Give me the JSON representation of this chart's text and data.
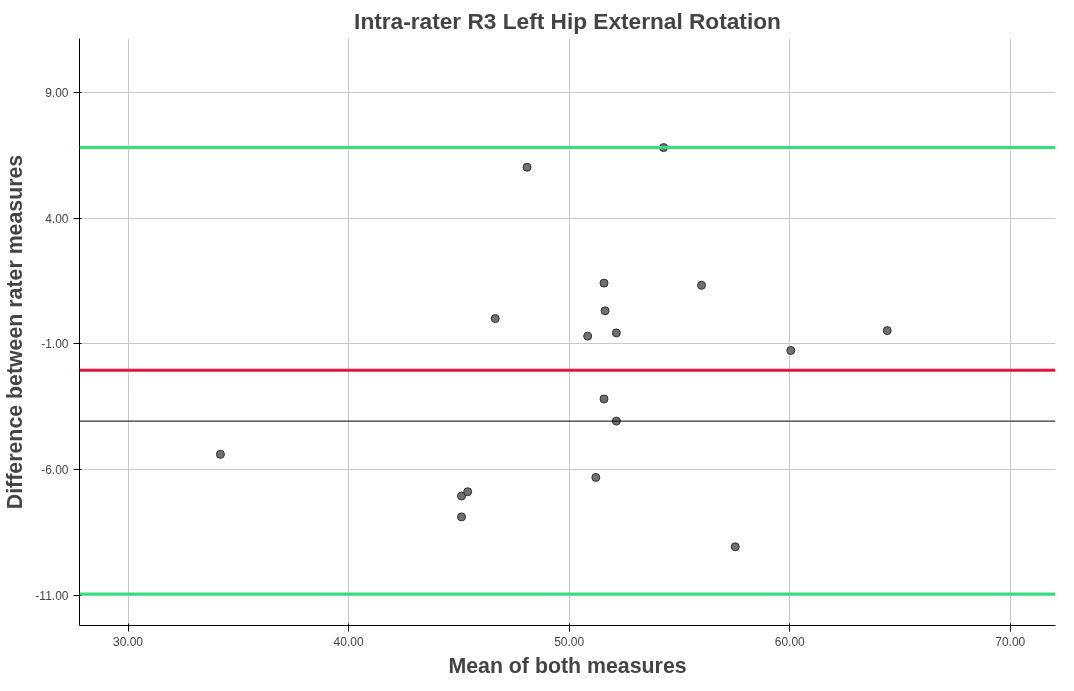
{
  "chart_data": {
    "type": "scatter",
    "title": "Intra-rater R3 Left Hip External Rotation",
    "xlabel": "Mean of both measures",
    "ylabel": "Difference between rater measures",
    "x": [
      34.19,
      45.12,
      45.4,
      45.12,
      46.65,
      48.09,
      50.84,
      51.21,
      51.58,
      51.63,
      51.58,
      52.14,
      52.14,
      54.28,
      56.0,
      57.53,
      60.05,
      64.42
    ],
    "series": [
      {
        "color": "#707070",
        "values": [
          -5.39,
          -7.05,
          -6.88,
          -7.88,
          0.01,
          6.03,
          -0.69,
          -6.31,
          1.42,
          0.32,
          -3.19,
          -0.56,
          -4.07,
          6.81,
          1.33,
          -9.07,
          -1.26,
          -0.47
        ]
      }
    ],
    "xlim": [
      27.8,
      72.05
    ],
    "ylim": [
      -12.2,
      11.15
    ],
    "xticks": [
      {
        "value": 30,
        "label": "30.00"
      },
      {
        "value": 40,
        "label": "40.00"
      },
      {
        "value": 50,
        "label": "50.00"
      },
      {
        "value": 60,
        "label": "60.00"
      },
      {
        "value": 70,
        "label": "70.00"
      }
    ],
    "yticks": [
      {
        "value": -11,
        "label": "-11.00"
      },
      {
        "value": -6,
        "label": "-6.00"
      },
      {
        "value": -1,
        "label": "-1.00"
      },
      {
        "value": 4,
        "label": "4.00"
      },
      {
        "value": 9,
        "label": "9.00"
      }
    ],
    "ref_lines": [
      {
        "axis": "y",
        "value": 6.81,
        "color": "#33e07a"
      },
      {
        "axis": "y",
        "value": -2.05,
        "color": "#e0143c"
      },
      {
        "axis": "y",
        "value": -4.07,
        "color": "#000000"
      },
      {
        "axis": "y",
        "value": -10.95,
        "color": "#33e07a"
      }
    ],
    "grid": true,
    "marker": "circle"
  }
}
